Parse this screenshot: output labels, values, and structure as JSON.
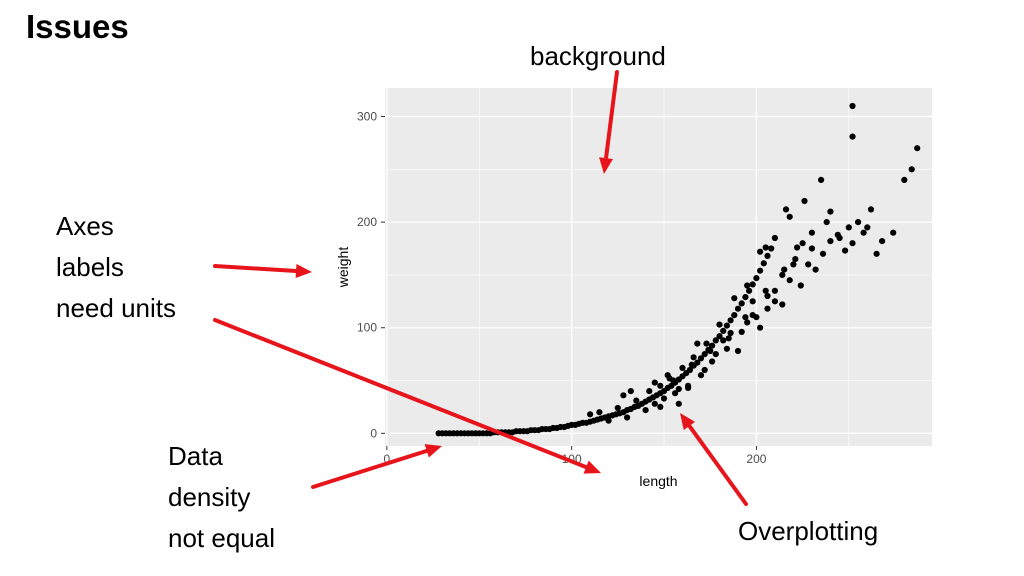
{
  "slide": {
    "title": "Issues"
  },
  "annotations": {
    "background": "background",
    "axes_lines": [
      "Axes",
      "labels",
      "need units"
    ],
    "density_lines": [
      "Data",
      "density",
      "not equal"
    ],
    "overplotting": "Overplotting"
  },
  "colors": {
    "arrow": "#e8141b",
    "panel": "#ebebeb",
    "grid": "#ffffff",
    "point": "#000000"
  },
  "chart_data": {
    "type": "scatter",
    "xlabel": "length",
    "ylabel": "weight",
    "xlim": [
      -1,
      295
    ],
    "ylim": [
      -12,
      327
    ],
    "x_ticks": [
      0,
      100,
      200
    ],
    "y_ticks": [
      0,
      100,
      200,
      300
    ],
    "grid": true,
    "points": [
      [
        28,
        0
      ],
      [
        30,
        0
      ],
      [
        32,
        0
      ],
      [
        34,
        0
      ],
      [
        36,
        0
      ],
      [
        38,
        0
      ],
      [
        40,
        0
      ],
      [
        42,
        0
      ],
      [
        44,
        0
      ],
      [
        46,
        0
      ],
      [
        48,
        0
      ],
      [
        50,
        0
      ],
      [
        52,
        0
      ],
      [
        54,
        0
      ],
      [
        56,
        0
      ],
      [
        58,
        1
      ],
      [
        60,
        1
      ],
      [
        62,
        1
      ],
      [
        64,
        1
      ],
      [
        66,
        1
      ],
      [
        68,
        1
      ],
      [
        70,
        2
      ],
      [
        72,
        2
      ],
      [
        74,
        2
      ],
      [
        76,
        2
      ],
      [
        78,
        3
      ],
      [
        80,
        3
      ],
      [
        82,
        3
      ],
      [
        84,
        4
      ],
      [
        86,
        4
      ],
      [
        88,
        4
      ],
      [
        90,
        5
      ],
      [
        92,
        5
      ],
      [
        94,
        6
      ],
      [
        96,
        6
      ],
      [
        98,
        7
      ],
      [
        100,
        8
      ],
      [
        102,
        8
      ],
      [
        104,
        9
      ],
      [
        106,
        10
      ],
      [
        108,
        10
      ],
      [
        110,
        11
      ],
      [
        112,
        12
      ],
      [
        114,
        13
      ],
      [
        116,
        14
      ],
      [
        118,
        15
      ],
      [
        120,
        16
      ],
      [
        122,
        17
      ],
      [
        124,
        18
      ],
      [
        126,
        19
      ],
      [
        128,
        20
      ],
      [
        130,
        22
      ],
      [
        132,
        23
      ],
      [
        134,
        25
      ],
      [
        136,
        26
      ],
      [
        138,
        28
      ],
      [
        140,
        30
      ],
      [
        142,
        32
      ],
      [
        144,
        34
      ],
      [
        146,
        36
      ],
      [
        148,
        38
      ],
      [
        150,
        40
      ],
      [
        152,
        43
      ],
      [
        154,
        45
      ],
      [
        156,
        48
      ],
      [
        158,
        51
      ],
      [
        160,
        54
      ],
      [
        162,
        57
      ],
      [
        164,
        60
      ],
      [
        166,
        64
      ],
      [
        168,
        67
      ],
      [
        170,
        71
      ],
      [
        172,
        75
      ],
      [
        174,
        79
      ],
      [
        176,
        83
      ],
      [
        178,
        88
      ],
      [
        180,
        92
      ],
      [
        182,
        97
      ],
      [
        184,
        102
      ],
      [
        186,
        107
      ],
      [
        188,
        112
      ],
      [
        190,
        118
      ],
      [
        192,
        123
      ],
      [
        194,
        129
      ],
      [
        196,
        135
      ],
      [
        198,
        141
      ],
      [
        200,
        147
      ],
      [
        202,
        154
      ],
      [
        204,
        161
      ],
      [
        206,
        168
      ],
      [
        208,
        175
      ],
      [
        110,
        18
      ],
      [
        115,
        20
      ],
      [
        120,
        12
      ],
      [
        125,
        24
      ],
      [
        130,
        15
      ],
      [
        135,
        31
      ],
      [
        140,
        22
      ],
      [
        142,
        40
      ],
      [
        145,
        28
      ],
      [
        148,
        45
      ],
      [
        150,
        33
      ],
      [
        153,
        52
      ],
      [
        156,
        38
      ],
      [
        160,
        62
      ],
      [
        163,
        45
      ],
      [
        166,
        72
      ],
      [
        170,
        55
      ],
      [
        173,
        85
      ],
      [
        176,
        68
      ],
      [
        180,
        103
      ],
      [
        184,
        80
      ],
      [
        188,
        128
      ],
      [
        192,
        96
      ],
      [
        195,
        140
      ],
      [
        198,
        112
      ],
      [
        202,
        172
      ],
      [
        206,
        130
      ],
      [
        210,
        185
      ],
      [
        214,
        150
      ],
      [
        218,
        205
      ],
      [
        222,
        176
      ],
      [
        226,
        220
      ],
      [
        230,
        190
      ],
      [
        235,
        240
      ],
      [
        240,
        210
      ],
      [
        128,
        36
      ],
      [
        132,
        40
      ],
      [
        148,
        25
      ],
      [
        152,
        55
      ],
      [
        158,
        42
      ],
      [
        168,
        85
      ],
      [
        172,
        60
      ],
      [
        178,
        75
      ],
      [
        182,
        88
      ],
      [
        186,
        95
      ],
      [
        190,
        78
      ],
      [
        194,
        110
      ],
      [
        198,
        125
      ],
      [
        202,
        100
      ],
      [
        206,
        118
      ],
      [
        210,
        135
      ],
      [
        214,
        122
      ],
      [
        218,
        145
      ],
      [
        221,
        165
      ],
      [
        224,
        140
      ],
      [
        228,
        160
      ],
      [
        232,
        155
      ],
      [
        236,
        170
      ],
      [
        240,
        182
      ],
      [
        244,
        188
      ],
      [
        248,
        173
      ],
      [
        250,
        195
      ],
      [
        252,
        180
      ],
      [
        255,
        200
      ],
      [
        258,
        190
      ],
      [
        262,
        212
      ],
      [
        268,
        182
      ],
      [
        274,
        190
      ],
      [
        280,
        240
      ],
      [
        284,
        250
      ],
      [
        287,
        270
      ],
      [
        252,
        310
      ],
      [
        252,
        281
      ],
      [
        216,
        212
      ],
      [
        205,
        176
      ],
      [
        158,
        28
      ],
      [
        163,
        43
      ],
      [
        145,
        48
      ],
      [
        155,
        50
      ],
      [
        165,
        65
      ],
      [
        175,
        78
      ],
      [
        185,
        90
      ],
      [
        195,
        105
      ],
      [
        205,
        135
      ],
      [
        215,
        155
      ],
      [
        225,
        180
      ],
      [
        200,
        110
      ],
      [
        210,
        125
      ],
      [
        220,
        160
      ],
      [
        230,
        175
      ],
      [
        238,
        200
      ],
      [
        245,
        185
      ],
      [
        260,
        195
      ],
      [
        265,
        170
      ]
    ]
  }
}
